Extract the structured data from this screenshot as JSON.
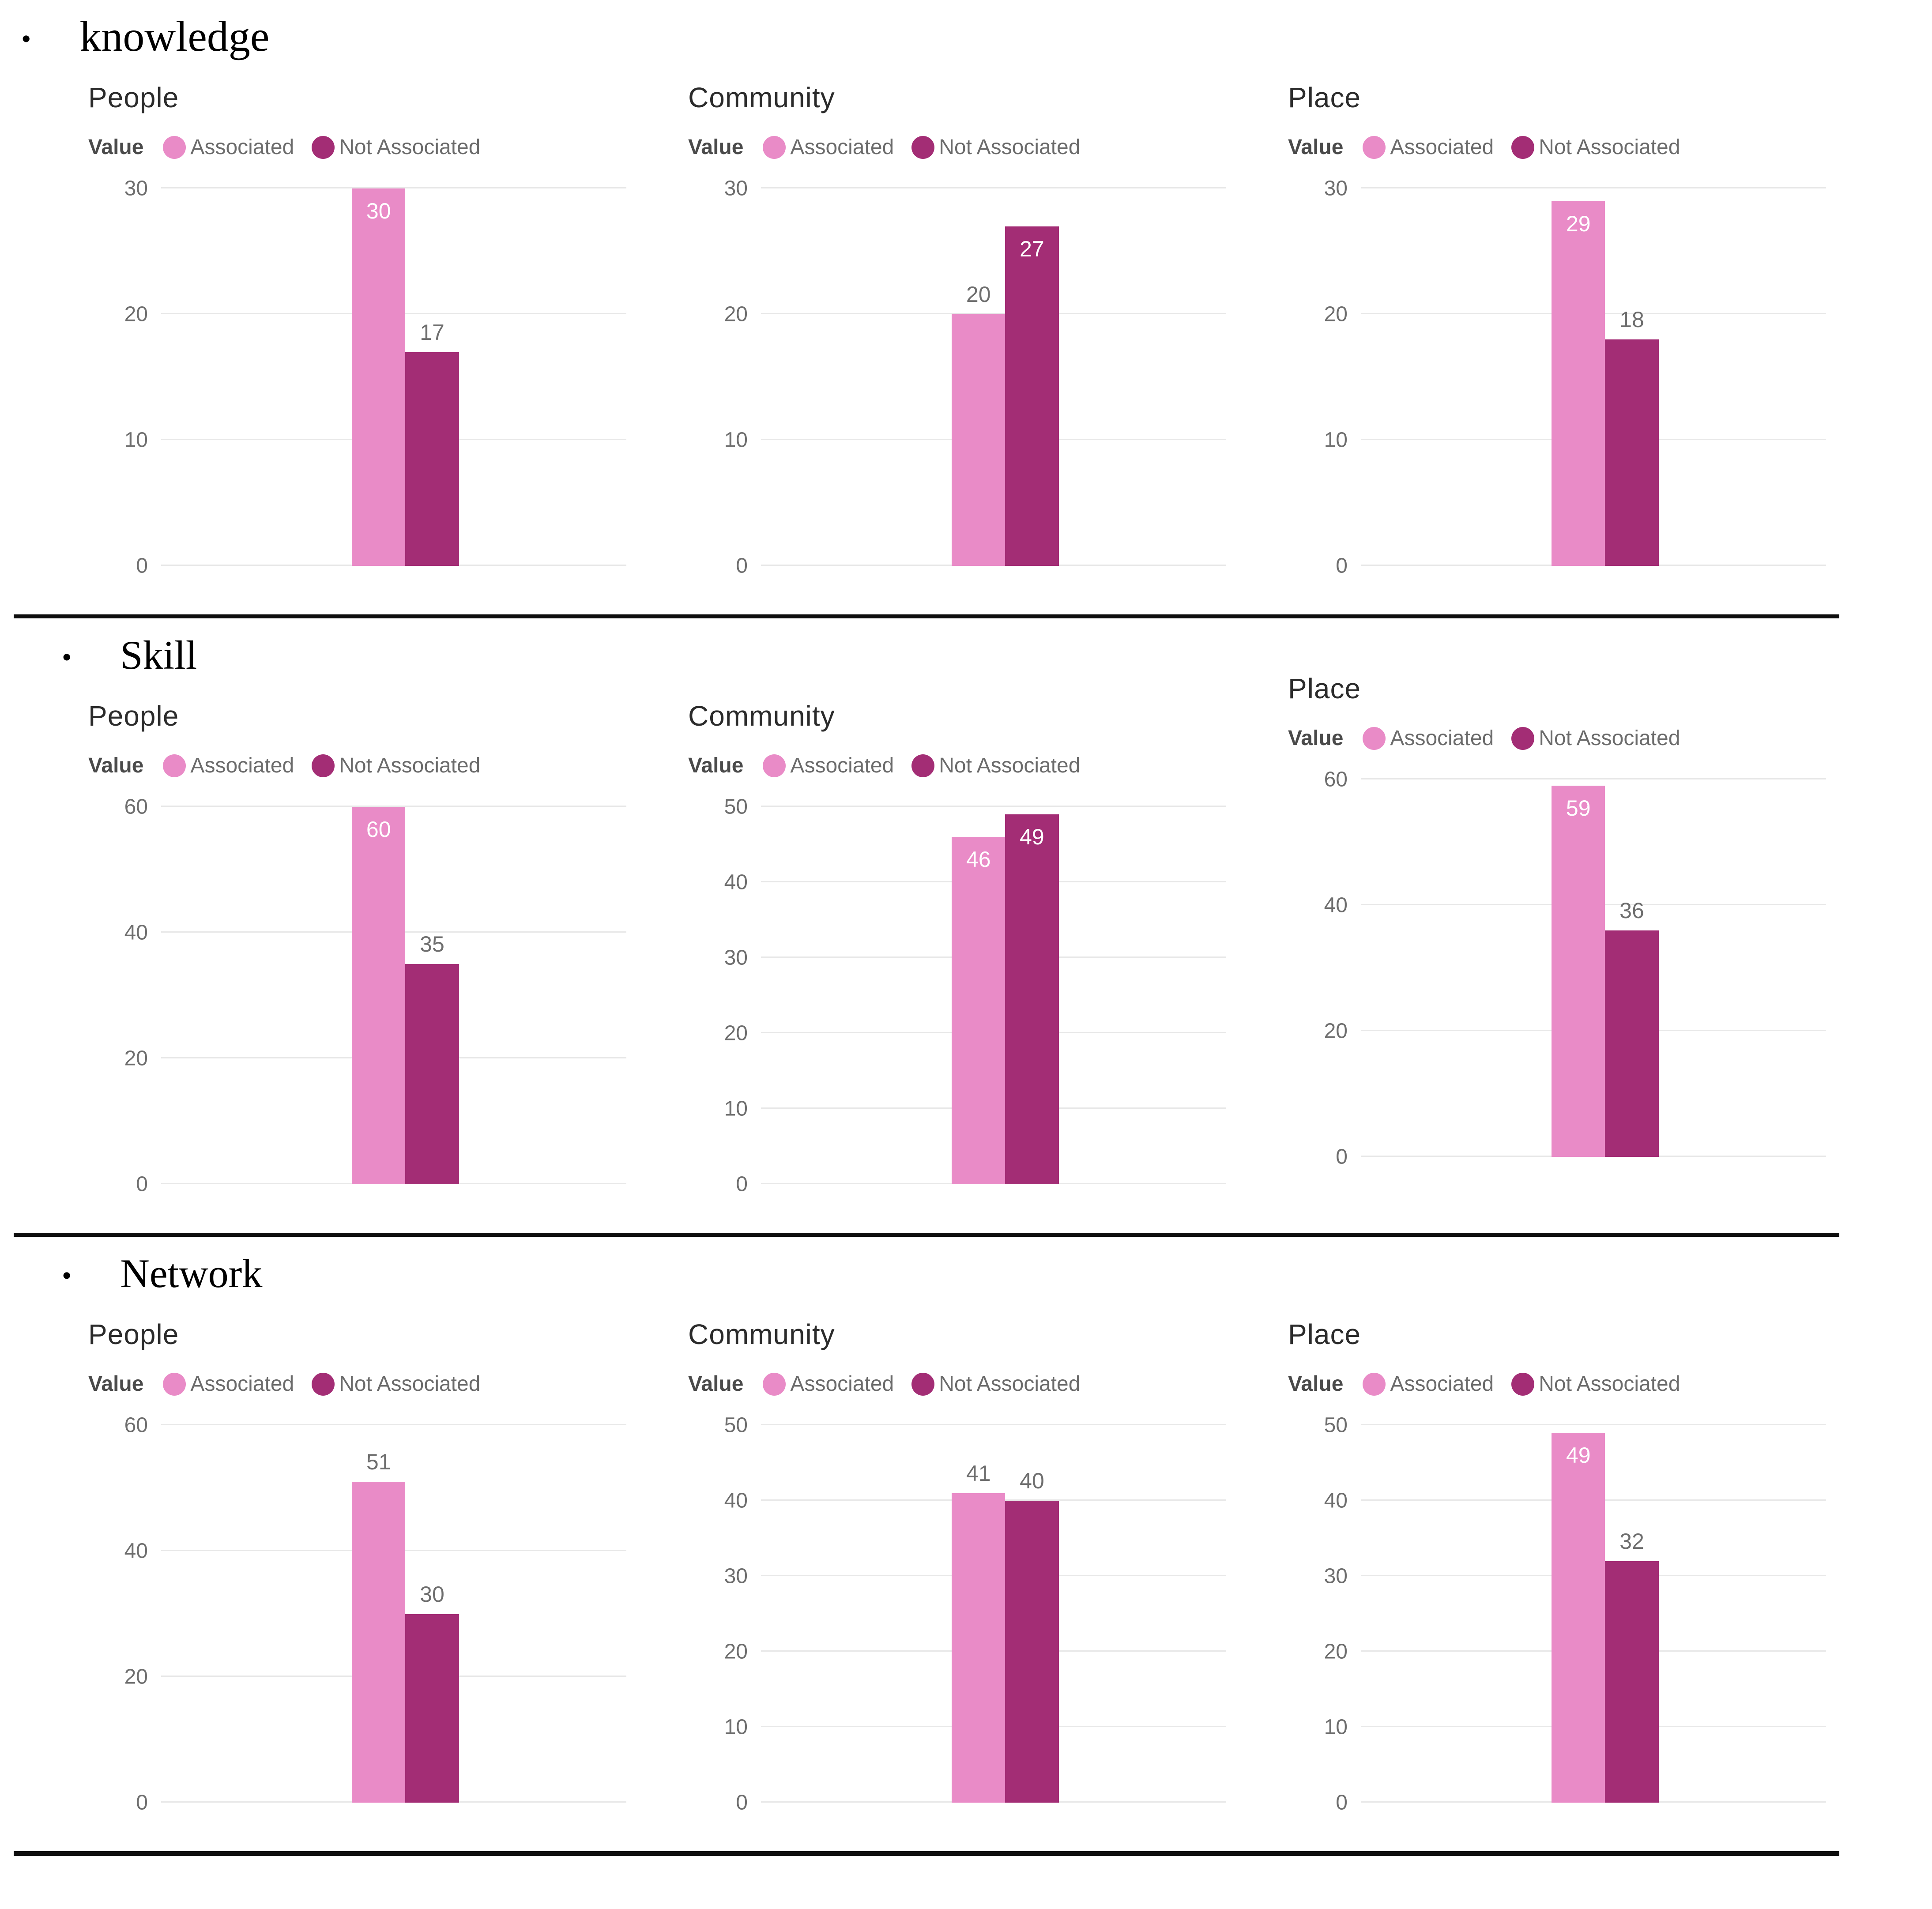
{
  "figure_bullet": "•",
  "colors": {
    "associated": "#E98BC7",
    "not_associated": "#A32D75",
    "grid": "#E8E8E8",
    "tick_text": "#6E6E6E",
    "title_text": "#2B2B2B",
    "legend_text": "#6B6B6B",
    "label_inside": "#FFFFFF",
    "label_outside": "#6E6E6E",
    "separator": "#0E0E0E"
  },
  "legend": {
    "title": "Value",
    "items": [
      "Associated",
      "Not Associated"
    ]
  },
  "sections": [
    {
      "heading": "knowledge",
      "charts": [
        0,
        1,
        2
      ]
    },
    {
      "heading": "Skill",
      "charts": [
        3,
        4,
        5
      ]
    },
    {
      "heading": "Network",
      "charts": [
        6,
        7,
        8
      ]
    }
  ],
  "chart_data": [
    {
      "type": "bar",
      "section": "knowledge",
      "title": "People",
      "legend_title": "Value",
      "legend_position": "top",
      "grid": true,
      "categories": [
        "Associated",
        "Not Associated"
      ],
      "values": [
        30,
        17
      ],
      "ylim": [
        0,
        30
      ],
      "yticks": [
        0,
        10,
        20,
        30
      ],
      "xlabel": "",
      "ylabel": ""
    },
    {
      "type": "bar",
      "section": "knowledge",
      "title": "Community",
      "legend_title": "Value",
      "legend_position": "top",
      "grid": true,
      "categories": [
        "Associated",
        "Not Associated"
      ],
      "values": [
        20,
        27
      ],
      "ylim": [
        0,
        30
      ],
      "yticks": [
        0,
        10,
        20,
        30
      ],
      "xlabel": "",
      "ylabel": ""
    },
    {
      "type": "bar",
      "section": "knowledge",
      "title": "Place",
      "legend_title": "Value",
      "legend_position": "top",
      "grid": true,
      "categories": [
        "Associated",
        "Not Associated"
      ],
      "values": [
        29,
        18
      ],
      "ylim": [
        0,
        30
      ],
      "yticks": [
        0,
        10,
        20,
        30
      ],
      "xlabel": "",
      "ylabel": ""
    },
    {
      "type": "bar",
      "section": "Skill",
      "title": "People",
      "legend_title": "Value",
      "legend_position": "top",
      "grid": true,
      "categories": [
        "Associated",
        "Not Associated"
      ],
      "values": [
        60,
        35
      ],
      "ylim": [
        0,
        60
      ],
      "yticks": [
        0,
        20,
        40,
        60
      ],
      "xlabel": "",
      "ylabel": ""
    },
    {
      "type": "bar",
      "section": "Skill",
      "title": "Community",
      "legend_title": "Value",
      "legend_position": "top",
      "grid": true,
      "categories": [
        "Associated",
        "Not Associated"
      ],
      "values": [
        46,
        49
      ],
      "ylim": [
        0,
        50
      ],
      "yticks": [
        0,
        10,
        20,
        30,
        40,
        50
      ],
      "xlabel": "",
      "ylabel": ""
    },
    {
      "type": "bar",
      "section": "Skill",
      "title": "Place",
      "legend_title": "Value",
      "legend_position": "top",
      "grid": true,
      "categories": [
        "Associated",
        "Not Associated"
      ],
      "values": [
        59,
        36
      ],
      "ylim": [
        0,
        60
      ],
      "yticks": [
        0,
        20,
        40,
        60
      ],
      "xlabel": "",
      "ylabel": ""
    },
    {
      "type": "bar",
      "section": "Network",
      "title": "People",
      "legend_title": "Value",
      "legend_position": "top",
      "grid": true,
      "categories": [
        "Associated",
        "Not Associated"
      ],
      "values": [
        51,
        30
      ],
      "ylim": [
        0,
        60
      ],
      "yticks": [
        0,
        20,
        40,
        60
      ],
      "xlabel": "",
      "ylabel": ""
    },
    {
      "type": "bar",
      "section": "Network",
      "title": "Community",
      "legend_title": "Value",
      "legend_position": "top",
      "grid": true,
      "categories": [
        "Associated",
        "Not Associated"
      ],
      "values": [
        41,
        40
      ],
      "ylim": [
        0,
        50
      ],
      "yticks": [
        0,
        10,
        20,
        30,
        40,
        50
      ],
      "xlabel": "",
      "ylabel": ""
    },
    {
      "type": "bar",
      "section": "Network",
      "title": "Place",
      "legend_title": "Value",
      "legend_position": "top",
      "grid": true,
      "categories": [
        "Associated",
        "Not Associated"
      ],
      "values": [
        49,
        32
      ],
      "ylim": [
        0,
        50
      ],
      "yticks": [
        0,
        10,
        20,
        30,
        40,
        50
      ],
      "xlabel": "",
      "ylabel": ""
    }
  ]
}
